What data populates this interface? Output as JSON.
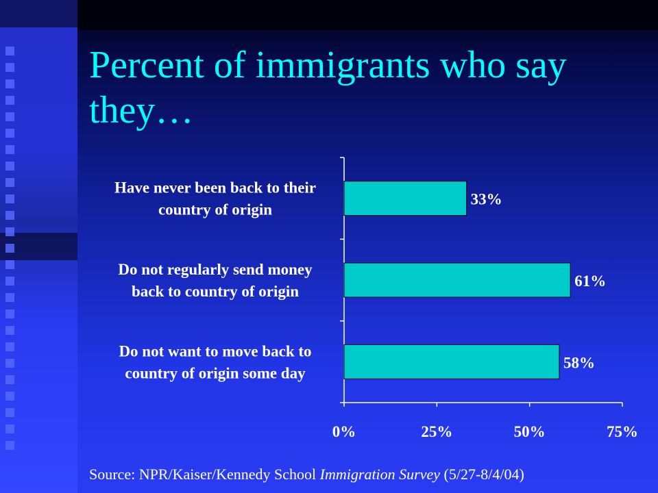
{
  "slide": {
    "title": "Percent of immigrants who say they…",
    "source": {
      "prefix": "Source: NPR/Kaiser/Kennedy School ",
      "italic": "Immigration Survey",
      "suffix": " (5/27-8/4/04)"
    }
  },
  "colors": {
    "title": "#00ffff",
    "bar": "#00cccc",
    "text": "#ffffff"
  },
  "chart_data": {
    "type": "bar",
    "orientation": "horizontal",
    "categories": [
      [
        "Have never been back to their",
        "country of origin"
      ],
      [
        "Do not regularly send money",
        "back to country of origin"
      ],
      [
        "Do not want to move back to",
        "country of origin some day"
      ]
    ],
    "values": [
      33,
      61,
      58
    ],
    "data_labels": [
      "33%",
      "61%",
      "58%"
    ],
    "xlim": [
      0,
      75
    ],
    "x_ticks": [
      0,
      25,
      50,
      75
    ],
    "x_tick_labels": [
      "0%",
      "25%",
      "50%",
      "75%"
    ],
    "grid": false,
    "legend": false
  }
}
